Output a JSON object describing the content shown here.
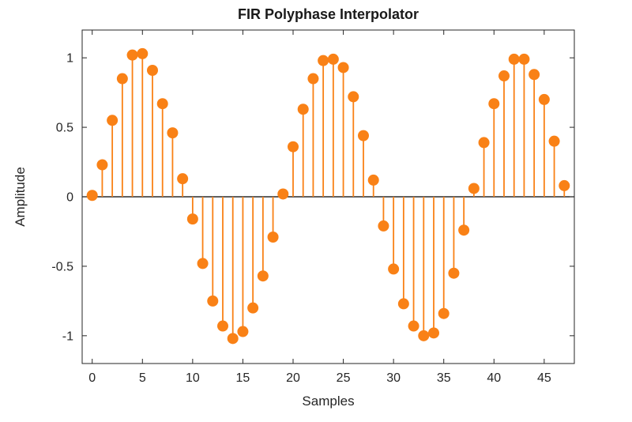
{
  "figure": {
    "background": "#FFFFFF"
  },
  "chart_data": {
    "type": "stem",
    "title": "FIR Polyphase Interpolator",
    "xlabel": "Samples",
    "ylabel": "Amplitude",
    "x": [
      0,
      1,
      2,
      3,
      4,
      5,
      6,
      7,
      8,
      9,
      10,
      11,
      12,
      13,
      14,
      15,
      16,
      17,
      18,
      19,
      20,
      21,
      22,
      23,
      24,
      25,
      26,
      27,
      28,
      29,
      30,
      31,
      32,
      33,
      34,
      35,
      36,
      37,
      38,
      39,
      40,
      41,
      42,
      43,
      44,
      45,
      46,
      47
    ],
    "values": [
      0.01,
      0.23,
      0.55,
      0.85,
      1.02,
      1.03,
      0.91,
      0.67,
      0.46,
      0.13,
      -0.16,
      -0.48,
      -0.75,
      -0.93,
      -1.02,
      -0.97,
      -0.8,
      -0.57,
      -0.29,
      0.02,
      0.36,
      0.63,
      0.85,
      0.98,
      0.99,
      0.93,
      0.72,
      0.44,
      0.12,
      -0.21,
      -0.52,
      -0.77,
      -0.93,
      -1.0,
      -0.98,
      -0.84,
      -0.55,
      -0.24,
      0.06,
      0.39,
      0.67,
      0.87,
      0.99,
      0.99,
      0.88,
      0.7,
      0.4,
      0.08
    ],
    "xlim": [
      -1,
      48
    ],
    "ylim": [
      -1.2,
      1.2
    ],
    "xticks": [
      0,
      5,
      10,
      15,
      20,
      25,
      30,
      35,
      40,
      45
    ],
    "yticks": [
      -1,
      -0.5,
      0,
      0.5,
      1
    ],
    "ytick_labels": [
      "-1",
      "-0.5",
      "0",
      "0.5",
      "1"
    ],
    "grid": false,
    "legend": "none",
    "marker_color": "#F98116",
    "stem_color": "#F98116",
    "baseline_color": "#000000",
    "axis_color": "#262626"
  }
}
